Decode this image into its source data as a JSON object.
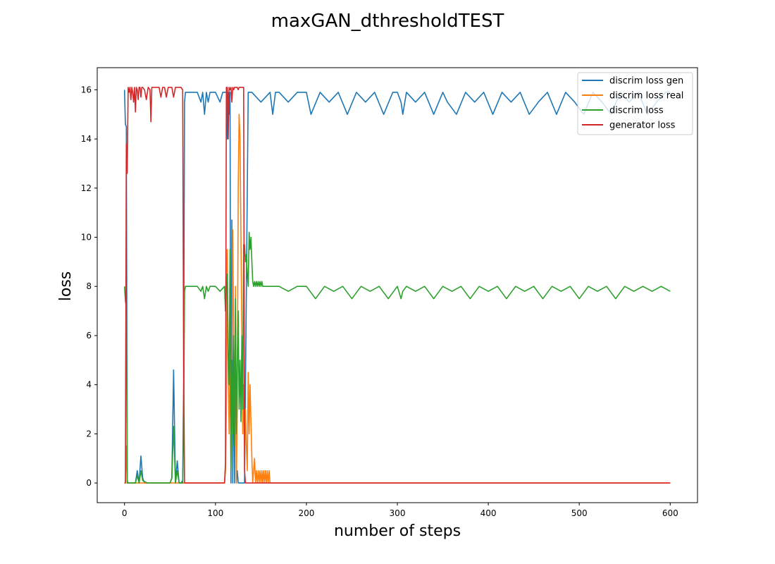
{
  "chart_data": {
    "type": "line",
    "title": "maxGAN_dthresholdTEST",
    "xlabel": "number of steps",
    "ylabel": "loss",
    "xlim": [
      -30,
      630
    ],
    "ylim": [
      -0.8,
      16.9
    ],
    "xticks": [
      0,
      100,
      200,
      300,
      400,
      500,
      600
    ],
    "yticks": [
      0,
      2,
      4,
      6,
      8,
      10,
      12,
      14,
      16
    ],
    "grid": false,
    "legend_position": "top-right",
    "series": [
      {
        "name": "discrim loss gen",
        "color": "#1f77b4",
        "x": [
          0,
          1,
          2,
          3,
          4,
          5,
          10,
          12,
          14,
          16,
          18,
          20,
          22,
          30,
          40,
          50,
          52,
          54,
          56,
          58,
          60,
          62,
          64,
          65,
          66,
          67,
          70,
          80,
          84,
          86,
          88,
          90,
          92,
          94,
          96,
          100,
          105,
          108,
          110,
          112,
          113,
          114,
          115,
          116,
          117,
          118,
          119,
          120,
          121,
          122,
          123,
          124,
          125,
          126,
          127,
          128,
          130,
          132,
          136,
          140,
          150,
          160,
          163,
          166,
          170,
          180,
          190,
          200,
          205,
          215,
          225,
          235,
          245,
          255,
          265,
          275,
          285,
          295,
          300,
          304,
          306,
          310,
          320,
          330,
          340,
          350,
          355,
          365,
          375,
          385,
          395,
          405,
          415,
          425,
          435,
          445,
          455,
          465,
          475,
          485,
          495,
          505,
          515,
          525,
          535,
          545,
          555,
          565,
          575,
          585,
          595,
          600
        ],
        "y": [
          16.0,
          14.6,
          14.5,
          0.1,
          0.0,
          0.0,
          0.0,
          0.0,
          0.5,
          0.0,
          1.1,
          0.2,
          0.0,
          0.0,
          0.0,
          0.0,
          0.2,
          4.6,
          0.0,
          0.9,
          0.0,
          0.0,
          0.1,
          4.0,
          15.5,
          15.9,
          15.9,
          15.9,
          15.5,
          15.9,
          15.0,
          15.9,
          15.5,
          15.9,
          15.9,
          15.9,
          15.5,
          15.9,
          15.9,
          15.9,
          14.0,
          15.9,
          15.0,
          15.9,
          0.0,
          10.7,
          0.0,
          5.0,
          0.0,
          7.0,
          0.0,
          0.5,
          0.0,
          0.0,
          0.0,
          0.0,
          0.0,
          0.0,
          15.9,
          15.9,
          15.5,
          15.9,
          15.0,
          15.9,
          15.9,
          15.5,
          15.9,
          15.9,
          15.0,
          15.9,
          15.5,
          15.9,
          15.0,
          15.9,
          15.5,
          15.9,
          15.0,
          15.9,
          15.9,
          15.5,
          15.0,
          15.9,
          15.5,
          15.9,
          15.0,
          15.9,
          15.5,
          15.0,
          15.9,
          15.5,
          15.9,
          15.0,
          15.9,
          15.5,
          15.9,
          15.0,
          15.5,
          15.9,
          15.0,
          15.9,
          15.5,
          15.0,
          15.9,
          15.5,
          15.0,
          15.9,
          15.5,
          15.9,
          15.0,
          15.5,
          15.9,
          15.9
        ]
      },
      {
        "name": "discrim loss real",
        "color": "#ff7f0e",
        "x": [
          0,
          1,
          2,
          3,
          4,
          5,
          10,
          20,
          30,
          40,
          50,
          55,
          60,
          64,
          65,
          66,
          70,
          80,
          100,
          110,
          111,
          112,
          113,
          114,
          115,
          116,
          117,
          118,
          119,
          120,
          121,
          122,
          123,
          124,
          125,
          126,
          127,
          128,
          129,
          130,
          131,
          132,
          133,
          134,
          135,
          136,
          137,
          138,
          139,
          140,
          141,
          142,
          143,
          144,
          145,
          146,
          147,
          148,
          149,
          150,
          151,
          152,
          153,
          154,
          155,
          156,
          157,
          158,
          159,
          160,
          161,
          165,
          200,
          300,
          400,
          500,
          600
        ],
        "y": [
          0.0,
          0.0,
          1.5,
          0.0,
          0.0,
          0.0,
          0.0,
          0.0,
          0.0,
          0.0,
          0.0,
          0.0,
          0.0,
          0.0,
          0.0,
          0.0,
          0.0,
          0.0,
          0.0,
          0.0,
          0.5,
          3.0,
          9.5,
          4.3,
          2.0,
          5.0,
          1.0,
          4.0,
          10.3,
          6.0,
          2.0,
          8.0,
          0.0,
          3.0,
          12.0,
          15.0,
          14.0,
          10.0,
          6.0,
          2.0,
          4.0,
          1.0,
          3.0,
          1.5,
          0.5,
          4.5,
          2.0,
          4.0,
          2.5,
          1.0,
          0.0,
          0.5,
          1.0,
          0.0,
          0.5,
          0.0,
          0.5,
          0.0,
          0.5,
          0.0,
          0.5,
          0.0,
          0.5,
          0.0,
          0.5,
          0.0,
          0.5,
          0.0,
          0.5,
          0.0,
          0.0,
          0.0,
          0.0,
          0.0,
          0.0,
          0.0,
          0.0
        ]
      },
      {
        "name": "discrim loss",
        "color": "#2ca02c",
        "x": [
          0,
          1,
          2,
          3,
          4,
          5,
          10,
          12,
          14,
          16,
          18,
          20,
          25,
          30,
          40,
          50,
          52,
          54,
          56,
          58,
          60,
          62,
          64,
          65,
          66,
          67,
          70,
          80,
          84,
          86,
          88,
          90,
          92,
          94,
          96,
          100,
          105,
          110,
          111,
          112,
          113,
          114,
          115,
          116,
          117,
          118,
          119,
          120,
          121,
          122,
          123,
          124,
          125,
          126,
          127,
          128,
          129,
          130,
          131,
          132,
          133,
          134,
          135,
          136,
          137,
          138,
          139,
          140,
          141,
          142,
          143,
          144,
          145,
          146,
          147,
          148,
          149,
          150,
          151,
          152,
          155,
          160,
          170,
          180,
          190,
          200,
          210,
          220,
          230,
          240,
          250,
          260,
          270,
          280,
          290,
          300,
          304,
          306,
          310,
          320,
          330,
          340,
          350,
          360,
          370,
          380,
          390,
          400,
          410,
          420,
          430,
          440,
          450,
          460,
          470,
          480,
          490,
          500,
          510,
          520,
          530,
          540,
          550,
          560,
          570,
          580,
          590,
          600
        ],
        "y": [
          8.0,
          7.4,
          7.2,
          0.0,
          0.0,
          0.0,
          0.0,
          0.0,
          0.3,
          0.0,
          0.5,
          0.1,
          0.0,
          0.0,
          0.0,
          0.0,
          0.2,
          2.3,
          0.0,
          0.5,
          0.0,
          0.0,
          0.0,
          2.0,
          7.8,
          8.0,
          8.0,
          8.0,
          7.8,
          8.0,
          7.5,
          8.0,
          7.8,
          8.0,
          8.0,
          8.0,
          7.8,
          8.0,
          7.0,
          8.0,
          8.5,
          5.2,
          4.0,
          9.5,
          0.5,
          5.0,
          2.0,
          6.0,
          1.5,
          7.5,
          2.0,
          5.0,
          7.0,
          3.0,
          5.0,
          2.5,
          6.0,
          3.0,
          9.7,
          9.7,
          9.0,
          9.3,
          8.5,
          8.0,
          10.2,
          9.5,
          10.0,
          9.0,
          8.2,
          8.0,
          8.2,
          8.0,
          8.2,
          8.0,
          8.2,
          8.0,
          8.2,
          8.0,
          8.2,
          8.0,
          8.0,
          8.0,
          8.0,
          7.8,
          8.0,
          8.0,
          7.5,
          8.0,
          7.8,
          8.0,
          7.5,
          8.0,
          7.8,
          8.0,
          7.5,
          8.0,
          7.5,
          7.8,
          8.0,
          7.8,
          8.0,
          7.5,
          8.0,
          7.8,
          8.0,
          7.5,
          8.0,
          7.8,
          8.0,
          7.5,
          8.0,
          7.8,
          8.0,
          7.5,
          8.0,
          7.8,
          8.0,
          7.5,
          8.0,
          7.8,
          8.0,
          7.5,
          8.0,
          7.8,
          8.0,
          7.8,
          8.0,
          7.8
        ]
      },
      {
        "name": "generator loss",
        "color": "#d62728",
        "x": [
          0,
          1,
          2,
          3,
          4,
          5,
          6,
          7,
          8,
          9,
          10,
          11,
          12,
          13,
          14,
          15,
          16,
          17,
          18,
          19,
          20,
          22,
          24,
          26,
          28,
          29,
          30,
          32,
          34,
          36,
          38,
          40,
          42,
          44,
          46,
          48,
          50,
          52,
          54,
          56,
          58,
          60,
          62,
          64,
          65,
          66,
          67,
          70,
          80,
          90,
          100,
          105,
          108,
          110,
          111,
          112,
          113,
          114,
          115,
          116,
          117,
          118,
          119,
          120,
          121,
          122,
          123,
          124,
          125,
          126,
          127,
          128,
          129,
          130,
          131,
          132,
          133,
          140,
          200,
          300,
          400,
          500,
          600
        ],
        "y": [
          0.0,
          0.0,
          13.8,
          12.6,
          16.1,
          15.9,
          16.1,
          15.6,
          16.1,
          15.9,
          15.5,
          16.1,
          15.1,
          16.1,
          16.0,
          15.6,
          16.1,
          16.1,
          15.7,
          16.1,
          16.1,
          16.0,
          15.6,
          16.1,
          16.0,
          14.7,
          16.1,
          16.1,
          16.1,
          16.1,
          16.1,
          15.7,
          16.1,
          16.1,
          15.7,
          16.1,
          16.1,
          16.1,
          15.7,
          16.1,
          16.1,
          16.1,
          16.1,
          16.0,
          5.0,
          0.0,
          0.0,
          0.0,
          0.0,
          0.0,
          0.0,
          0.0,
          0.0,
          0.0,
          0.8,
          16.1,
          16.1,
          14.0,
          16.1,
          16.0,
          16.1,
          15.5,
          16.1,
          16.0,
          16.1,
          16.1,
          16.1,
          16.1,
          16.0,
          16.1,
          16.1,
          16.1,
          16.1,
          16.1,
          16.1,
          0.5,
          0.0,
          0.0,
          0.0,
          0.0,
          0.0,
          0.0,
          0.0
        ]
      }
    ]
  }
}
